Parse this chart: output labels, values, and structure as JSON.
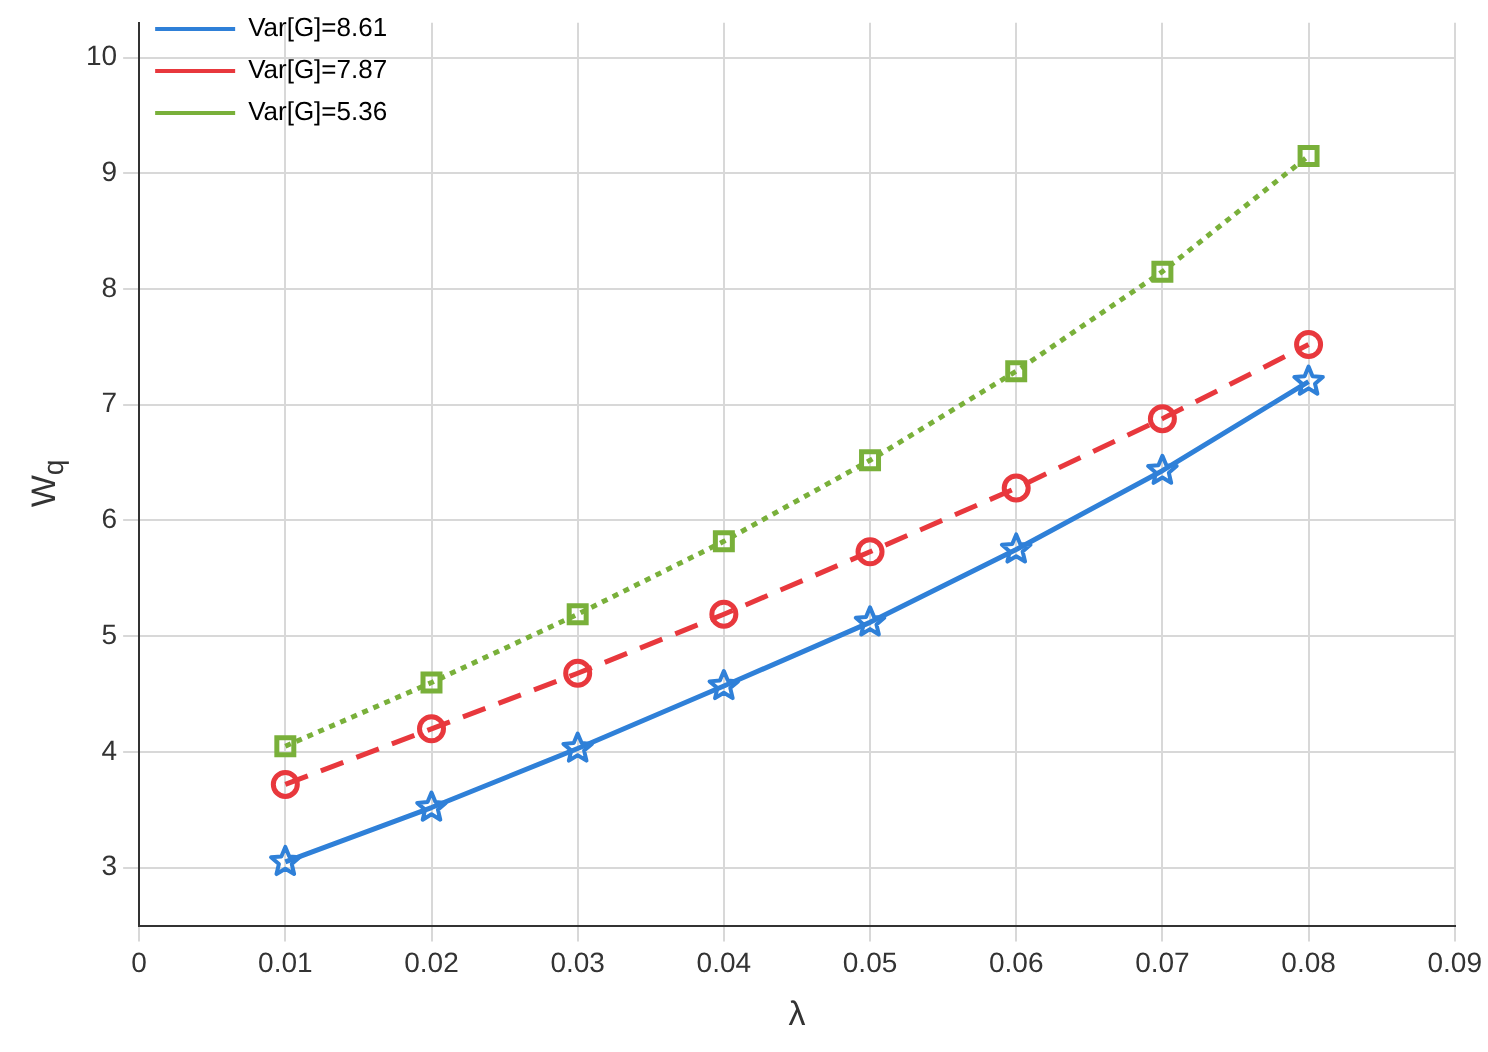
{
  "chart_data": {
    "type": "line",
    "xlabel": "λ",
    "ylabel": "W$_{q}$",
    "x": [
      0.01,
      0.02,
      0.03,
      0.04,
      0.05,
      0.06,
      0.07,
      0.08
    ],
    "series": [
      {
        "name": "Var[G]=8.61",
        "color": "#2f80d8",
        "marker": "star",
        "line_style": "solid",
        "values": [
          3.05,
          3.52,
          4.03,
          4.57,
          5.12,
          5.75,
          6.43,
          7.2
        ]
      },
      {
        "name": "Var[G]=7.87",
        "color": "#e8383d",
        "marker": "circle",
        "line_style": "dashed",
        "values": [
          3.72,
          4.2,
          4.68,
          5.19,
          5.73,
          6.28,
          6.88,
          7.52
        ]
      },
      {
        "name": "Var[G]=5.36",
        "color": "#79b03a",
        "marker": "square",
        "line_style": "dotted",
        "values": [
          4.05,
          4.6,
          5.19,
          5.82,
          6.52,
          7.29,
          8.15,
          9.15
        ]
      }
    ],
    "xlim": [
      0,
      0.09
    ],
    "xticks": [
      0,
      0.01,
      0.02,
      0.03,
      0.04,
      0.05,
      0.06,
      0.07,
      0.08,
      0.09
    ],
    "ylim": [
      2.5,
      10.3
    ],
    "yticks": [
      3,
      4,
      5,
      6,
      7,
      8,
      9,
      10
    ],
    "grid": true,
    "legend": "top left"
  }
}
